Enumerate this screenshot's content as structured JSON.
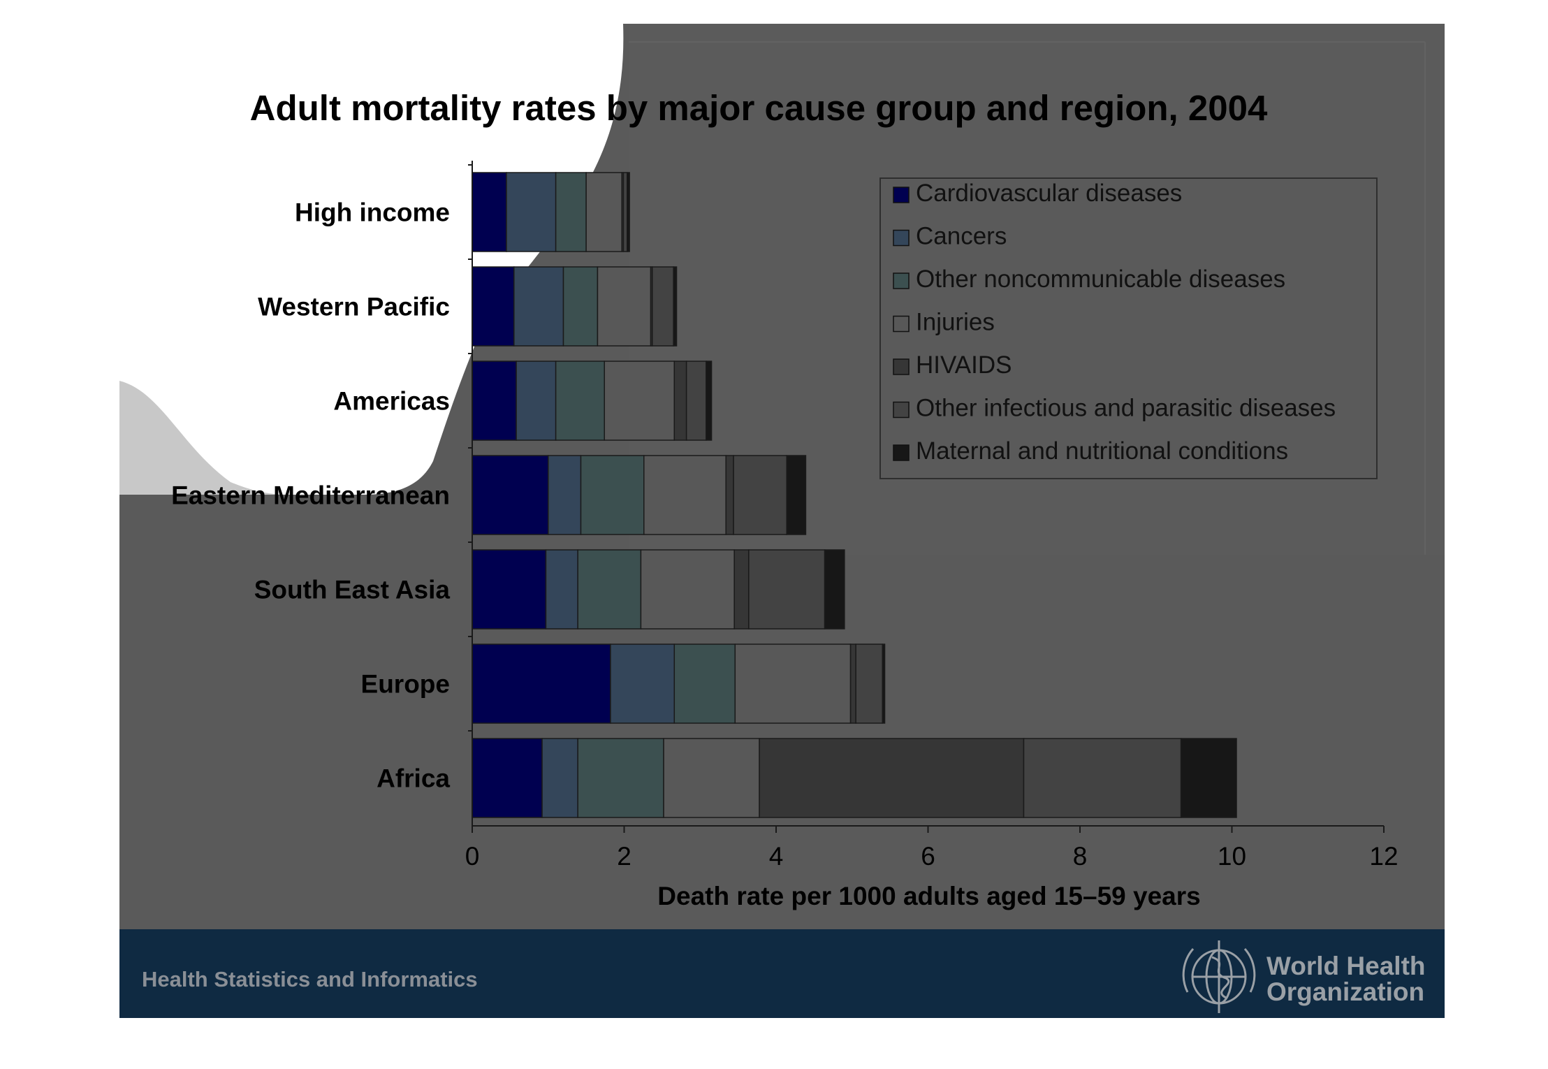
{
  "footer": {
    "section_label": "Health Statistics and Informatics",
    "org_name_line1": "World Health",
    "org_name_line2": "Organization"
  },
  "colors": {
    "slide_background": "#5a5a5a",
    "footer_band": "#0f2a42",
    "footer_text": "#8a8f96",
    "logo_text": "#9aa0a6"
  },
  "icons": {
    "org_logo": "who-emblem-icon",
    "decorative_swoosh": "white-swoosh-graphic"
  },
  "chart_data": {
    "type": "bar",
    "orientation": "horizontal",
    "stacked": true,
    "title": "Adult mortality rates by major cause group and region, 2004",
    "xlabel": "Death rate per 1000 adults aged 15–59 years",
    "ylabel": "",
    "xlim": [
      0,
      12
    ],
    "x_ticks": [
      0,
      2,
      4,
      6,
      8,
      10,
      12
    ],
    "grid": false,
    "legend_position": "top-right",
    "categories": [
      "High income",
      "Western Pacific",
      "Americas",
      "Eastern Mediterranean",
      "South East Asia",
      "Europe",
      "Africa"
    ],
    "series": [
      {
        "name": "Cardiovascular diseases",
        "color": "#000050",
        "values": [
          0.45,
          0.55,
          0.58,
          1.0,
          0.97,
          1.82,
          0.92
        ]
      },
      {
        "name": "Cancers",
        "color": "#34465a",
        "values": [
          0.65,
          0.65,
          0.52,
          0.43,
          0.42,
          0.84,
          0.47
        ]
      },
      {
        "name": "Other noncommunicable diseases",
        "color": "#3c5050",
        "values": [
          0.4,
          0.45,
          0.64,
          0.83,
          0.83,
          0.8,
          1.13
        ]
      },
      {
        "name": "Injuries",
        "color": "#585858",
        "values": [
          0.47,
          0.7,
          0.92,
          1.08,
          1.23,
          1.52,
          1.26
        ]
      },
      {
        "name": "HIVAIDS",
        "color": "#363636",
        "values": [
          0.02,
          0.02,
          0.16,
          0.1,
          0.19,
          0.07,
          3.48
        ]
      },
      {
        "name": "Other infectious and parasitic diseases",
        "color": "#434343",
        "values": [
          0.05,
          0.28,
          0.26,
          0.7,
          1.0,
          0.35,
          2.07
        ]
      },
      {
        "name": "Maternal and nutritional conditions",
        "color": "#171717",
        "values": [
          0.03,
          0.04,
          0.07,
          0.25,
          0.26,
          0.03,
          0.73
        ]
      }
    ]
  }
}
